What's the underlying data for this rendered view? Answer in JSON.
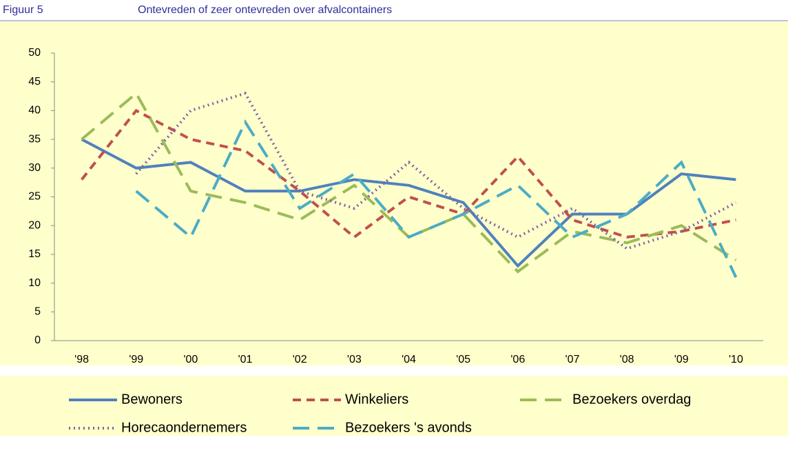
{
  "chart_data": {
    "type": "line",
    "figure_label": "Figuur 5",
    "title": "Ontevreden of zeer ontevreden over afvalcontainers",
    "categories": [
      "'98",
      "'99",
      "'00",
      "'01",
      "'02",
      "'03",
      "'04",
      "'05",
      "'06",
      "'07",
      "'08",
      "'09",
      "'10"
    ],
    "ylim": [
      0,
      50
    ],
    "yticks": [
      0,
      5,
      10,
      15,
      20,
      25,
      30,
      35,
      40,
      45,
      50
    ],
    "series": [
      {
        "name": "Bewoners",
        "color": "#4f81bd",
        "dash": "solid",
        "values": [
          35,
          30,
          31,
          26,
          26,
          28,
          27,
          24,
          13,
          22,
          22,
          29,
          28
        ]
      },
      {
        "name": "Winkeliers",
        "color": "#c0504d",
        "dash": "dashed",
        "values": [
          28,
          40,
          35,
          33,
          26,
          18,
          25,
          22,
          32,
          21,
          18,
          19,
          21
        ]
      },
      {
        "name": "Bezoekers overdag",
        "color": "#9bbb59",
        "dash": "long-dash",
        "values": [
          35,
          43,
          26,
          24,
          21,
          27,
          18,
          22,
          12,
          19,
          17,
          20,
          14
        ]
      },
      {
        "name": "Horecaondernemers",
        "color": "#8064a2",
        "dash": "dotted",
        "values": [
          null,
          29,
          40,
          43,
          26,
          23,
          31,
          23,
          18,
          23,
          16,
          19,
          24
        ]
      },
      {
        "name": "Bezoekers 's avonds",
        "color": "#4bacc6",
        "dash": "long-dash",
        "values": [
          null,
          26,
          18,
          38,
          23,
          29,
          18,
          22,
          27,
          18,
          22,
          31,
          11
        ]
      }
    ]
  }
}
